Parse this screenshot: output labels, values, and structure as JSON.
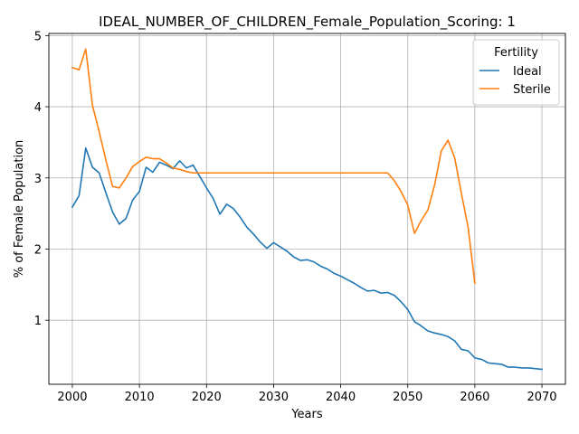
{
  "chart_data": {
    "type": "line",
    "title": "IDEAL_NUMBER_OF_CHILDREN_Female_Population_Scoring: 1",
    "xlabel": "Years",
    "ylabel": "% of Female Population",
    "xlim": [
      1996.5,
      2073.5
    ],
    "ylim": [
      0.1,
      5.03
    ],
    "xticks": [
      2000,
      2010,
      2020,
      2030,
      2040,
      2050,
      2060,
      2070
    ],
    "yticks": [
      1,
      2,
      3,
      4,
      5
    ],
    "grid": true,
    "legend": {
      "title": "Fertility",
      "placement": "top-right"
    },
    "series": [
      {
        "name": "Ideal",
        "color": "#1f77b4",
        "x": [
          2000,
          2001,
          2002,
          2003,
          2004,
          2005,
          2006,
          2007,
          2008,
          2009,
          2010,
          2011,
          2012,
          2013,
          2014,
          2015,
          2016,
          2017,
          2018,
          2019,
          2020,
          2021,
          2022,
          2023,
          2024,
          2025,
          2026,
          2027,
          2028,
          2029,
          2030,
          2031,
          2032,
          2033,
          2034,
          2035,
          2036,
          2037,
          2038,
          2039,
          2040,
          2041,
          2042,
          2043,
          2044,
          2045,
          2046,
          2047,
          2048,
          2049,
          2050,
          2051,
          2052,
          2053,
          2054,
          2055,
          2056,
          2057,
          2058,
          2059,
          2060,
          2061,
          2062,
          2063,
          2064,
          2065,
          2066,
          2067,
          2068,
          2069,
          2070
        ],
        "y": [
          2.59,
          2.75,
          3.42,
          3.15,
          3.07,
          2.79,
          2.52,
          2.35,
          2.43,
          2.69,
          2.81,
          3.15,
          3.08,
          3.22,
          3.18,
          3.13,
          3.24,
          3.14,
          3.18,
          3.02,
          2.86,
          2.71,
          2.49,
          2.63,
          2.57,
          2.45,
          2.31,
          2.21,
          2.1,
          2.01,
          2.09,
          2.03,
          1.97,
          1.89,
          1.84,
          1.85,
          1.82,
          1.76,
          1.72,
          1.66,
          1.62,
          1.57,
          1.52,
          1.46,
          1.41,
          1.42,
          1.38,
          1.39,
          1.35,
          1.26,
          1.15,
          0.98,
          0.92,
          0.85,
          0.82,
          0.8,
          0.77,
          0.71,
          0.59,
          0.57,
          0.47,
          0.45,
          0.4,
          0.39,
          0.38,
          0.34,
          0.34,
          0.33,
          0.33,
          0.32,
          0.31
        ]
      },
      {
        "name": "Sterile",
        "color": "#ff7f0e",
        "x": [
          2000,
          2001,
          2002,
          2003,
          2004,
          2005,
          2006,
          2007,
          2008,
          2009,
          2010,
          2011,
          2012,
          2013,
          2014,
          2015,
          2016,
          2017,
          2018,
          2019,
          2020,
          2025,
          2030,
          2035,
          2040,
          2045,
          2047,
          2048,
          2049,
          2050,
          2051,
          2052,
          2053,
          2054,
          2055,
          2056,
          2057,
          2058,
          2059,
          2060
        ],
        "y": [
          4.55,
          4.52,
          4.81,
          4.02,
          3.65,
          3.25,
          2.88,
          2.86,
          3.0,
          3.16,
          3.23,
          3.29,
          3.27,
          3.27,
          3.21,
          3.14,
          3.12,
          3.09,
          3.07,
          3.07,
          3.07,
          3.07,
          3.07,
          3.07,
          3.07,
          3.07,
          3.07,
          2.96,
          2.81,
          2.62,
          2.22,
          2.4,
          2.55,
          2.9,
          3.38,
          3.53,
          3.28,
          2.78,
          2.3,
          1.52
        ]
      }
    ]
  }
}
